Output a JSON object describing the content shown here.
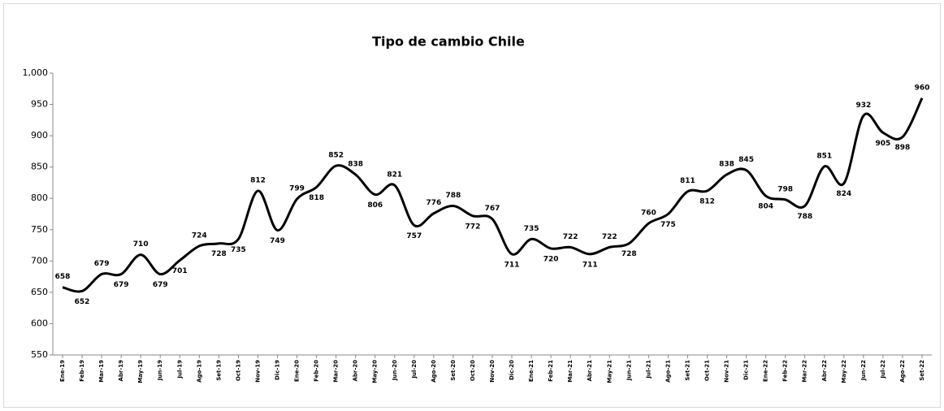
{
  "chart_data": {
    "type": "line",
    "title": "Tipo de cambio Chile",
    "categories": [
      "Ene-19",
      "Feb-19",
      "Mar-19",
      "Abr-19",
      "May-19",
      "Jun-19",
      "Jul-19",
      "Ago-19",
      "Set-19",
      "Oct-19",
      "Nov-19",
      "Dic-19",
      "Ene-20",
      "Feb-20",
      "Mar-20",
      "Abr-20",
      "May-20",
      "Jun-20",
      "Jul-20",
      "Ago-20",
      "Set-20",
      "Oct-20",
      "Nov-20",
      "Dic-20",
      "Ene-21",
      "Feb-21",
      "Mar-21",
      "Abr-21",
      "May-21",
      "Jun-21",
      "Jul-21",
      "Ago-21",
      "Set-21",
      "Oct-21",
      "Nov-21",
      "Dic-21",
      "Ene-22",
      "Feb-22",
      "Mar-22",
      "Abr-22",
      "May-22",
      "Jun-22",
      "Jul-22",
      "Ago-22",
      "Set-22"
    ],
    "values": [
      658,
      652,
      679,
      679,
      710,
      679,
      701,
      724,
      728,
      735,
      812,
      749,
      799,
      818,
      852,
      838,
      806,
      821,
      757,
      776,
      788,
      772,
      767,
      711,
      735,
      720,
      722,
      711,
      722,
      728,
      760,
      775,
      811,
      812,
      838,
      845,
      804,
      798,
      788,
      851,
      824,
      932,
      905,
      898,
      960
    ],
    "color": "#000000",
    "ylim": [
      550,
      1000
    ],
    "yticks": [
      550,
      600,
      650,
      700,
      750,
      800,
      850,
      900,
      950,
      {
        "value": 1000,
        "label": "1,000"
      }
    ],
    "grid": false
  }
}
